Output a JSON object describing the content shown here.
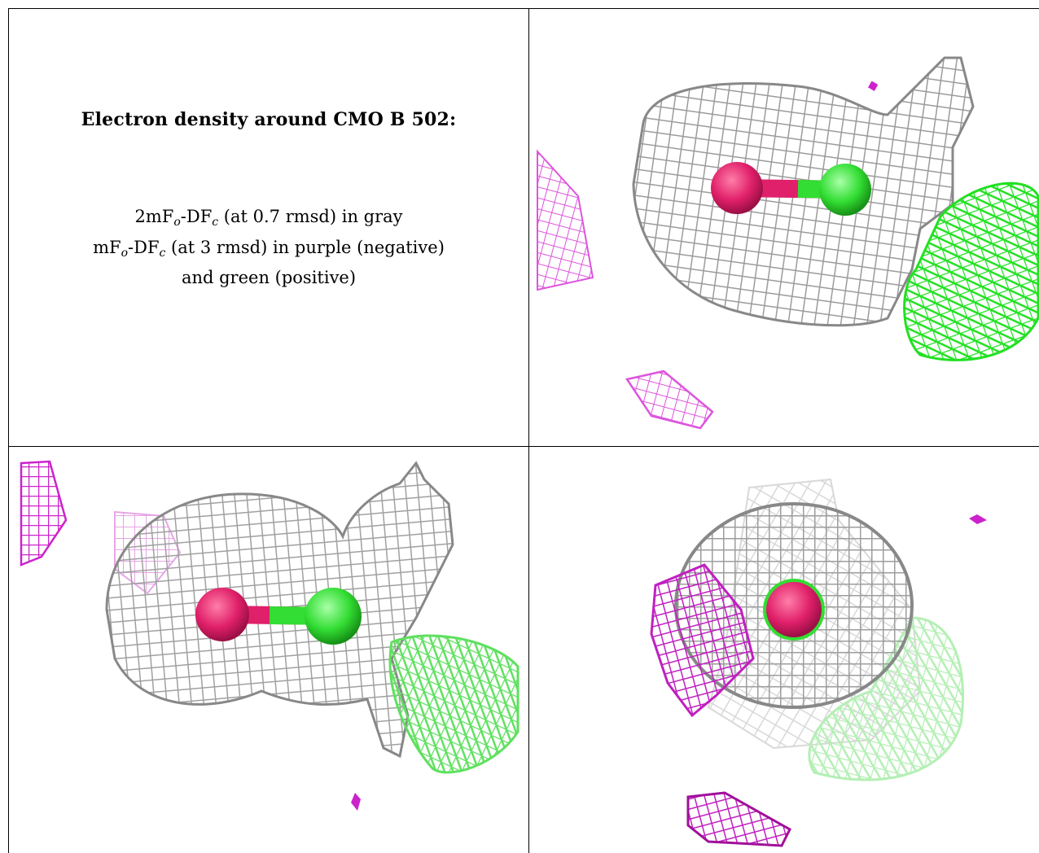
{
  "caption": {
    "title": "Electron density around CMO B 502:",
    "line1_pre": "2mF",
    "line1_sub1": "o",
    "line1_mid": "-DF",
    "line1_sub2": "c",
    "line1_post": " (at 0.7 rmsd) in gray",
    "line2_pre": "mF",
    "line2_sub1": "o",
    "line2_mid": "-DF",
    "line2_sub2": "c",
    "line2_post": " (at 3 rmsd) in purple (negative)",
    "line3": "and green (positive)"
  },
  "colors": {
    "map_2fofc": "#9a9a9a",
    "map_negative": "#cc22cc",
    "map_positive": "#22dd22",
    "oxygen": "#e0206a",
    "carbon": "#33dd33"
  },
  "views": [
    {
      "name": "view-top-right"
    },
    {
      "name": "view-bottom-left"
    },
    {
      "name": "view-bottom-right"
    }
  ]
}
